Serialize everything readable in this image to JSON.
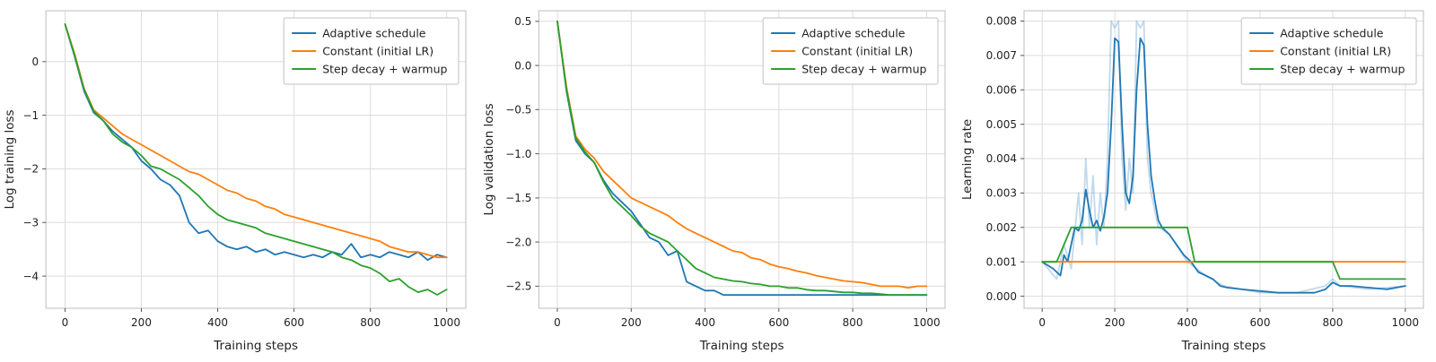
{
  "figure": {
    "background": "#ffffff"
  },
  "colors": {
    "adaptive": "#1f77b4",
    "constant": "#ff7f0e",
    "step_decay": "#2ca02c",
    "grid": "#dcdcdc",
    "frame": "#c8c8c8",
    "text": "#1f1f1f"
  },
  "chart_data": [
    {
      "type": "line",
      "name": "log-training-loss",
      "title": "",
      "xlabel": "Training steps",
      "ylabel": "Log training loss",
      "xlim": [
        -50,
        1050
      ],
      "ylim": [
        -4.6,
        0.95
      ],
      "xtick_values": [
        0,
        200,
        400,
        600,
        800,
        1000
      ],
      "xtick_labels": [
        "0",
        "200",
        "400",
        "600",
        "800",
        "1000"
      ],
      "ytick_values": [
        0,
        -1,
        -2,
        -3,
        -4
      ],
      "ytick_labels": [
        "0",
        "−1",
        "−2",
        "−3",
        "−4"
      ],
      "grid": true,
      "legend_position": "top-right",
      "series": [
        {
          "name": "Adaptive schedule",
          "color": "#1f77b4",
          "x": [
            0,
            25,
            50,
            75,
            100,
            125,
            150,
            175,
            200,
            225,
            250,
            275,
            300,
            325,
            350,
            375,
            400,
            425,
            450,
            475,
            500,
            525,
            550,
            575,
            600,
            625,
            650,
            675,
            700,
            725,
            750,
            775,
            800,
            825,
            850,
            875,
            900,
            925,
            950,
            975,
            1000
          ],
          "y": [
            0.7,
            0.1,
            -0.55,
            -0.95,
            -1.1,
            -1.3,
            -1.45,
            -1.6,
            -1.85,
            -2.0,
            -2.2,
            -2.3,
            -2.5,
            -3.0,
            -3.2,
            -3.15,
            -3.35,
            -3.45,
            -3.5,
            -3.45,
            -3.55,
            -3.5,
            -3.6,
            -3.55,
            -3.6,
            -3.65,
            -3.6,
            -3.65,
            -3.55,
            -3.6,
            -3.4,
            -3.65,
            -3.6,
            -3.65,
            -3.55,
            -3.6,
            -3.65,
            -3.55,
            -3.7,
            -3.6,
            -3.65
          ]
        },
        {
          "name": "Constant (initial LR)",
          "color": "#ff7f0e",
          "x": [
            0,
            25,
            50,
            75,
            100,
            125,
            150,
            175,
            200,
            225,
            250,
            275,
            300,
            325,
            350,
            375,
            400,
            425,
            450,
            475,
            500,
            525,
            550,
            575,
            600,
            625,
            650,
            675,
            700,
            725,
            750,
            775,
            800,
            825,
            850,
            875,
            900,
            925,
            950,
            975,
            1000
          ],
          "y": [
            0.7,
            0.15,
            -0.5,
            -0.9,
            -1.05,
            -1.2,
            -1.35,
            -1.45,
            -1.55,
            -1.65,
            -1.75,
            -1.85,
            -1.95,
            -2.05,
            -2.1,
            -2.2,
            -2.3,
            -2.4,
            -2.45,
            -2.55,
            -2.6,
            -2.7,
            -2.75,
            -2.85,
            -2.9,
            -2.95,
            -3.0,
            -3.05,
            -3.1,
            -3.15,
            -3.2,
            -3.25,
            -3.3,
            -3.35,
            -3.45,
            -3.5,
            -3.55,
            -3.55,
            -3.6,
            -3.65,
            -3.65
          ]
        },
        {
          "name": "Step decay + warmup",
          "color": "#2ca02c",
          "x": [
            0,
            25,
            50,
            75,
            100,
            125,
            150,
            175,
            200,
            225,
            250,
            275,
            300,
            325,
            350,
            375,
            400,
            425,
            450,
            475,
            500,
            525,
            550,
            575,
            600,
            625,
            650,
            675,
            700,
            725,
            750,
            775,
            800,
            825,
            850,
            875,
            900,
            925,
            950,
            975,
            1000
          ],
          "y": [
            0.7,
            0.12,
            -0.52,
            -0.92,
            -1.1,
            -1.35,
            -1.5,
            -1.6,
            -1.75,
            -1.95,
            -2.0,
            -2.1,
            -2.2,
            -2.35,
            -2.5,
            -2.7,
            -2.85,
            -2.95,
            -3.0,
            -3.05,
            -3.1,
            -3.2,
            -3.25,
            -3.3,
            -3.35,
            -3.4,
            -3.45,
            -3.5,
            -3.55,
            -3.65,
            -3.7,
            -3.8,
            -3.85,
            -3.95,
            -4.1,
            -4.05,
            -4.2,
            -4.3,
            -4.25,
            -4.35,
            -4.25
          ]
        }
      ]
    },
    {
      "type": "line",
      "name": "log-validation-loss",
      "title": "",
      "xlabel": "Training steps",
      "ylabel": "Log validation loss",
      "xlim": [
        -50,
        1050
      ],
      "ylim": [
        -2.75,
        0.62
      ],
      "xtick_values": [
        0,
        200,
        400,
        600,
        800,
        1000
      ],
      "xtick_labels": [
        "0",
        "200",
        "400",
        "600",
        "800",
        "1000"
      ],
      "ytick_values": [
        0.5,
        0,
        -0.5,
        -1,
        -1.5,
        -2,
        -2.5
      ],
      "ytick_labels": [
        "0.5",
        "0.0",
        "−0.5",
        "−1.0",
        "−1.5",
        "−2.0",
        "−2.5"
      ],
      "grid": true,
      "legend_position": "top-right",
      "series": [
        {
          "name": "Adaptive schedule",
          "color": "#1f77b4",
          "x": [
            0,
            25,
            50,
            75,
            100,
            125,
            150,
            175,
            200,
            225,
            250,
            275,
            300,
            325,
            350,
            375,
            400,
            425,
            450,
            475,
            500,
            525,
            550,
            575,
            600,
            625,
            650,
            675,
            700,
            725,
            750,
            775,
            800,
            825,
            850,
            875,
            900,
            925,
            950,
            975,
            1000
          ],
          "y": [
            0.5,
            -0.3,
            -0.85,
            -1.0,
            -1.1,
            -1.3,
            -1.45,
            -1.55,
            -1.65,
            -1.8,
            -1.95,
            -2.0,
            -2.15,
            -2.1,
            -2.45,
            -2.5,
            -2.55,
            -2.55,
            -2.6,
            -2.6,
            -2.6,
            -2.6,
            -2.6,
            -2.6,
            -2.6,
            -2.6,
            -2.6,
            -2.6,
            -2.6,
            -2.6,
            -2.6,
            -2.6,
            -2.6,
            -2.6,
            -2.6,
            -2.6,
            -2.6,
            -2.6,
            -2.6,
            -2.6,
            -2.6
          ]
        },
        {
          "name": "Constant (initial LR)",
          "color": "#ff7f0e",
          "x": [
            0,
            25,
            50,
            75,
            100,
            125,
            150,
            175,
            200,
            225,
            250,
            275,
            300,
            325,
            350,
            375,
            400,
            425,
            450,
            475,
            500,
            525,
            550,
            575,
            600,
            625,
            650,
            675,
            700,
            725,
            750,
            775,
            800,
            825,
            850,
            875,
            900,
            925,
            950,
            975,
            1000
          ],
          "y": [
            0.5,
            -0.25,
            -0.8,
            -0.95,
            -1.05,
            -1.2,
            -1.3,
            -1.4,
            -1.5,
            -1.55,
            -1.6,
            -1.65,
            -1.7,
            -1.78,
            -1.85,
            -1.9,
            -1.95,
            -2.0,
            -2.05,
            -2.1,
            -2.12,
            -2.18,
            -2.2,
            -2.25,
            -2.28,
            -2.3,
            -2.33,
            -2.35,
            -2.38,
            -2.4,
            -2.42,
            -2.44,
            -2.45,
            -2.46,
            -2.48,
            -2.5,
            -2.5,
            -2.5,
            -2.52,
            -2.5,
            -2.5
          ]
        },
        {
          "name": "Step decay + warmup",
          "color": "#2ca02c",
          "x": [
            0,
            25,
            50,
            75,
            100,
            125,
            150,
            175,
            200,
            225,
            250,
            275,
            300,
            325,
            350,
            375,
            400,
            425,
            450,
            475,
            500,
            525,
            550,
            575,
            600,
            625,
            650,
            675,
            700,
            725,
            750,
            775,
            800,
            825,
            850,
            875,
            900,
            925,
            950,
            975,
            1000
          ],
          "y": [
            0.5,
            -0.28,
            -0.82,
            -0.98,
            -1.1,
            -1.32,
            -1.5,
            -1.6,
            -1.7,
            -1.82,
            -1.9,
            -1.95,
            -2.0,
            -2.1,
            -2.2,
            -2.3,
            -2.35,
            -2.4,
            -2.42,
            -2.44,
            -2.45,
            -2.47,
            -2.48,
            -2.5,
            -2.5,
            -2.52,
            -2.52,
            -2.54,
            -2.55,
            -2.55,
            -2.56,
            -2.57,
            -2.57,
            -2.58,
            -2.58,
            -2.59,
            -2.6,
            -2.6,
            -2.6,
            -2.6,
            -2.6
          ]
        }
      ]
    },
    {
      "type": "line",
      "name": "learning-rate",
      "title": "",
      "xlabel": "Training steps",
      "ylabel": "Learning rate",
      "xlim": [
        -50,
        1050
      ],
      "ylim": [
        -0.00035,
        0.0083
      ],
      "xtick_values": [
        0,
        200,
        400,
        600,
        800,
        1000
      ],
      "xtick_labels": [
        "0",
        "200",
        "400",
        "600",
        "800",
        "1000"
      ],
      "ytick_values": [
        0,
        0.001,
        0.002,
        0.003,
        0.004,
        0.005,
        0.006,
        0.007,
        0.008
      ],
      "ytick_labels": [
        "0.000",
        "0.001",
        "0.002",
        "0.003",
        "0.004",
        "0.005",
        "0.006",
        "0.007",
        "0.008"
      ],
      "grid": true,
      "legend_position": "top-right",
      "series": [
        {
          "name": "Adaptive schedule (raw)",
          "legend": false,
          "color": "#1f77b4",
          "opacity": 0.28,
          "x": [
            0,
            40,
            60,
            80,
            100,
            110,
            120,
            130,
            140,
            150,
            160,
            170,
            180,
            190,
            200,
            210,
            220,
            230,
            240,
            250,
            260,
            270,
            280,
            290,
            300,
            320,
            350,
            400,
            450,
            500,
            600,
            700,
            780,
            800,
            820,
            900,
            1000
          ],
          "y": [
            0.001,
            0.0005,
            0.0015,
            0.0008,
            0.003,
            0.0015,
            0.004,
            0.002,
            0.0035,
            0.0015,
            0.003,
            0.002,
            0.004,
            0.008,
            0.0078,
            0.008,
            0.004,
            0.0025,
            0.004,
            0.003,
            0.008,
            0.0078,
            0.008,
            0.004,
            0.003,
            0.002,
            0.0018,
            0.001,
            0.0006,
            0.0003,
            0.0001,
            0.0001,
            0.0003,
            0.0005,
            0.0003,
            0.0002,
            0.0003
          ]
        },
        {
          "name": "Adaptive schedule",
          "color": "#1f77b4",
          "x": [
            0,
            30,
            50,
            60,
            70,
            90,
            100,
            110,
            120,
            130,
            140,
            150,
            160,
            170,
            180,
            190,
            200,
            210,
            220,
            230,
            240,
            250,
            260,
            270,
            280,
            290,
            300,
            310,
            320,
            330,
            350,
            370,
            390,
            410,
            430,
            450,
            470,
            490,
            510,
            550,
            600,
            650,
            700,
            750,
            780,
            800,
            820,
            850,
            900,
            950,
            1000
          ],
          "y": [
            0.001,
            0.0008,
            0.0006,
            0.0012,
            0.001,
            0.002,
            0.0019,
            0.0022,
            0.0031,
            0.0025,
            0.002,
            0.0022,
            0.0019,
            0.0023,
            0.003,
            0.005,
            0.0075,
            0.0074,
            0.005,
            0.003,
            0.0027,
            0.0035,
            0.006,
            0.0075,
            0.0073,
            0.005,
            0.0035,
            0.0028,
            0.0022,
            0.002,
            0.0018,
            0.0015,
            0.0012,
            0.001,
            0.0007,
            0.0006,
            0.0005,
            0.0003,
            0.00025,
            0.0002,
            0.00015,
            0.0001,
            0.0001,
            0.0001,
            0.0002,
            0.0004,
            0.0003,
            0.0003,
            0.00025,
            0.0002,
            0.0003
          ]
        },
        {
          "name": "Constant (initial LR)",
          "color": "#ff7f0e",
          "x": [
            0,
            1000
          ],
          "y": [
            0.001,
            0.001
          ]
        },
        {
          "name": "Step decay + warmup",
          "color": "#2ca02c",
          "x": [
            0,
            40,
            60,
            80,
            400,
            410,
            420,
            800,
            810,
            820,
            1000
          ],
          "y": [
            0.001,
            0.001,
            0.0015,
            0.002,
            0.002,
            0.0015,
            0.001,
            0.001,
            0.00075,
            0.0005,
            0.0005
          ]
        }
      ]
    }
  ]
}
